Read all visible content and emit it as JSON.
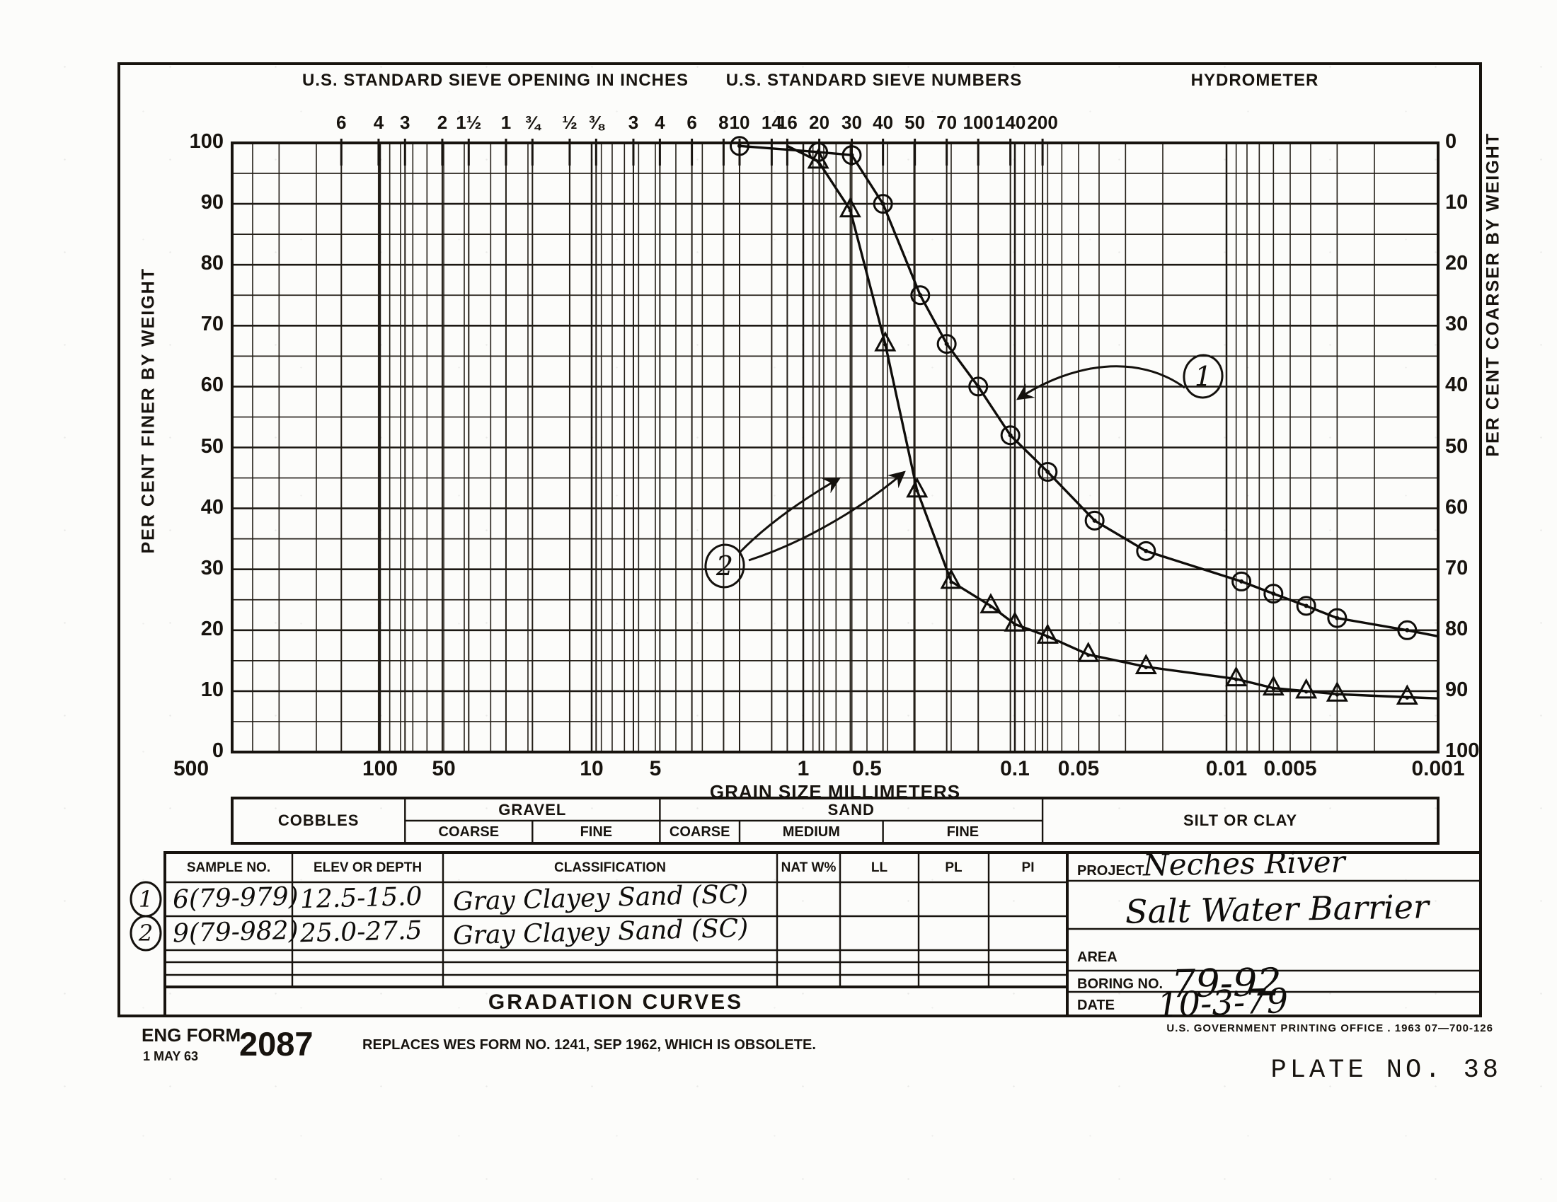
{
  "form_headers": {
    "sieve_inches": "U.S. STANDARD SIEVE OPENING IN INCHES",
    "sieve_numbers": "U.S. STANDARD SIEVE NUMBERS",
    "hydrometer": "HYDROMETER"
  },
  "chart_data": {
    "type": "line",
    "title": "GRADATION CURVES",
    "x_axis": {
      "label": "GRAIN SIZE MILLIMETERS",
      "scale": "log",
      "direction": "descending",
      "range": [
        500,
        0.001
      ],
      "tick_labels": [
        "500",
        "100",
        "50",
        "10",
        "5",
        "1",
        "0.5",
        "0.1",
        "0.05",
        "0.01",
        "0.005",
        "0.001"
      ]
    },
    "y_axis_left": {
      "label": "PER CENT FINER BY WEIGHT",
      "range": [
        0,
        100
      ],
      "tick_labels": [
        "100",
        "90",
        "80",
        "70",
        "60",
        "50",
        "40",
        "30",
        "20",
        "10",
        "0"
      ]
    },
    "y_axis_right": {
      "label": "PER CENT COARSER BY WEIGHT",
      "range": [
        0,
        100
      ],
      "tick_labels": [
        "0",
        "10",
        "20",
        "30",
        "40",
        "50",
        "60",
        "70",
        "80",
        "90",
        "100"
      ]
    },
    "grid": {
      "horizontal_step": 5,
      "vertical": "log decades, minors and sieve sizes"
    },
    "sieves_inches": [
      {
        "label": "6",
        "mm": 152.4
      },
      {
        "label": "4",
        "mm": 101.6
      },
      {
        "label": "3",
        "mm": 76.2
      },
      {
        "label": "2",
        "mm": 50.8
      },
      {
        "label": "1½",
        "mm": 38.1
      },
      {
        "label": "1",
        "mm": 25.4
      },
      {
        "label": "¾",
        "mm": 19.05
      },
      {
        "label": "½",
        "mm": 12.7
      },
      {
        "label": "⅜",
        "mm": 9.525
      }
    ],
    "sieve_numbers": [
      {
        "label": "3",
        "mm": 6.35
      },
      {
        "label": "4",
        "mm": 4.76
      },
      {
        "label": "6",
        "mm": 3.36
      },
      {
        "label": "8",
        "mm": 2.38
      },
      {
        "label": "10",
        "mm": 2.0
      },
      {
        "label": "14",
        "mm": 1.41
      },
      {
        "label": "16",
        "mm": 1.19
      },
      {
        "label": "20",
        "mm": 0.84
      },
      {
        "label": "30",
        "mm": 0.59
      },
      {
        "label": "40",
        "mm": 0.42
      },
      {
        "label": "50",
        "mm": 0.297
      },
      {
        "label": "70",
        "mm": 0.21
      },
      {
        "label": "100",
        "mm": 0.149
      },
      {
        "label": "140",
        "mm": 0.105
      },
      {
        "label": "200",
        "mm": 0.074
      }
    ],
    "series": [
      {
        "name": "1",
        "sample": "6(79-979)",
        "marker": "circle",
        "points_mm_pct": [
          [
            2.0,
            99.5
          ],
          [
            0.85,
            98.5
          ],
          [
            0.59,
            98
          ],
          [
            0.42,
            90
          ],
          [
            0.28,
            75
          ],
          [
            0.21,
            67
          ],
          [
            0.149,
            60
          ],
          [
            0.105,
            52
          ],
          [
            0.07,
            46
          ],
          [
            0.042,
            38
          ],
          [
            0.024,
            33
          ],
          [
            0.0085,
            28
          ],
          [
            0.006,
            26
          ],
          [
            0.0042,
            24
          ],
          [
            0.003,
            22
          ],
          [
            0.0014,
            20
          ]
        ],
        "tail": [
          0.001,
          19
        ]
      },
      {
        "name": "2",
        "sample": "9(79-982)",
        "marker": "triangle",
        "head": [
          1.19,
          99.5
        ],
        "points_mm_pct": [
          [
            0.85,
            97
          ],
          [
            0.6,
            89
          ],
          [
            0.41,
            67
          ],
          [
            0.29,
            43
          ],
          [
            0.2,
            28
          ],
          [
            0.13,
            24
          ],
          [
            0.1,
            21
          ],
          [
            0.07,
            19
          ],
          [
            0.045,
            16
          ],
          [
            0.024,
            14
          ],
          [
            0.009,
            12
          ],
          [
            0.006,
            10.5
          ],
          [
            0.0042,
            10
          ],
          [
            0.003,
            9.5
          ],
          [
            0.0014,
            9
          ]
        ],
        "tail": [
          0.001,
          8.8
        ]
      }
    ],
    "callouts": [
      {
        "label": "1"
      },
      {
        "label": "2"
      }
    ]
  },
  "bands": [
    {
      "label": "COBBLES",
      "from": 500,
      "to": 76.2,
      "sub": []
    },
    {
      "label": "GRAVEL",
      "from": 76.2,
      "to": 4.76,
      "sub": [
        {
          "label": "COARSE",
          "from": 76.2,
          "to": 19.05
        },
        {
          "label": "FINE",
          "from": 19.05,
          "to": 4.76
        }
      ]
    },
    {
      "label": "SAND",
      "from": 4.76,
      "to": 0.074,
      "sub": [
        {
          "label": "COARSE",
          "from": 4.76,
          "to": 2.0
        },
        {
          "label": "MEDIUM",
          "from": 2.0,
          "to": 0.42
        },
        {
          "label": "FINE",
          "from": 0.42,
          "to": 0.074
        }
      ]
    },
    {
      "label": "SILT OR CLAY",
      "from": 0.074,
      "to": 0.001,
      "sub": []
    }
  ],
  "sample_table": {
    "headers": [
      "SAMPLE NO.",
      "ELEV OR DEPTH",
      "CLASSIFICATION",
      "NAT W%",
      "LL",
      "PL",
      "PI"
    ],
    "rows": [
      {
        "badge": "1",
        "sample": "6(79-979)",
        "elev": "12.5-15.0",
        "classification": "Gray Clayey Sand (SC)",
        "nat": "",
        "ll": "",
        "pl": "",
        "pi": ""
      },
      {
        "badge": "2",
        "sample": "9(79-982)",
        "elev": "25.0-27.5",
        "classification": "Gray Clayey Sand (SC)",
        "nat": "",
        "ll": "",
        "pl": "",
        "pi": ""
      }
    ],
    "title": "GRADATION CURVES"
  },
  "project_block": {
    "project_label": "PROJECT",
    "project_line1": "Neches River",
    "project_line2": "Salt Water Barrier",
    "area_label": "AREA",
    "area_value": "",
    "boring_label": "BORING NO.",
    "boring_value": "79-92",
    "date_label": "DATE",
    "date_value": "10-3-79"
  },
  "footer": {
    "form_name": "ENG FORM",
    "form_number": "2087",
    "form_date": "1 MAY 63",
    "replaces": "REPLACES WES FORM NO. 1241, SEP 1962, WHICH IS OBSOLETE.",
    "gpo": "U.S. GOVERNMENT PRINTING OFFICE . 1963 07—700-126",
    "plate": "PLATE NO. 38"
  }
}
